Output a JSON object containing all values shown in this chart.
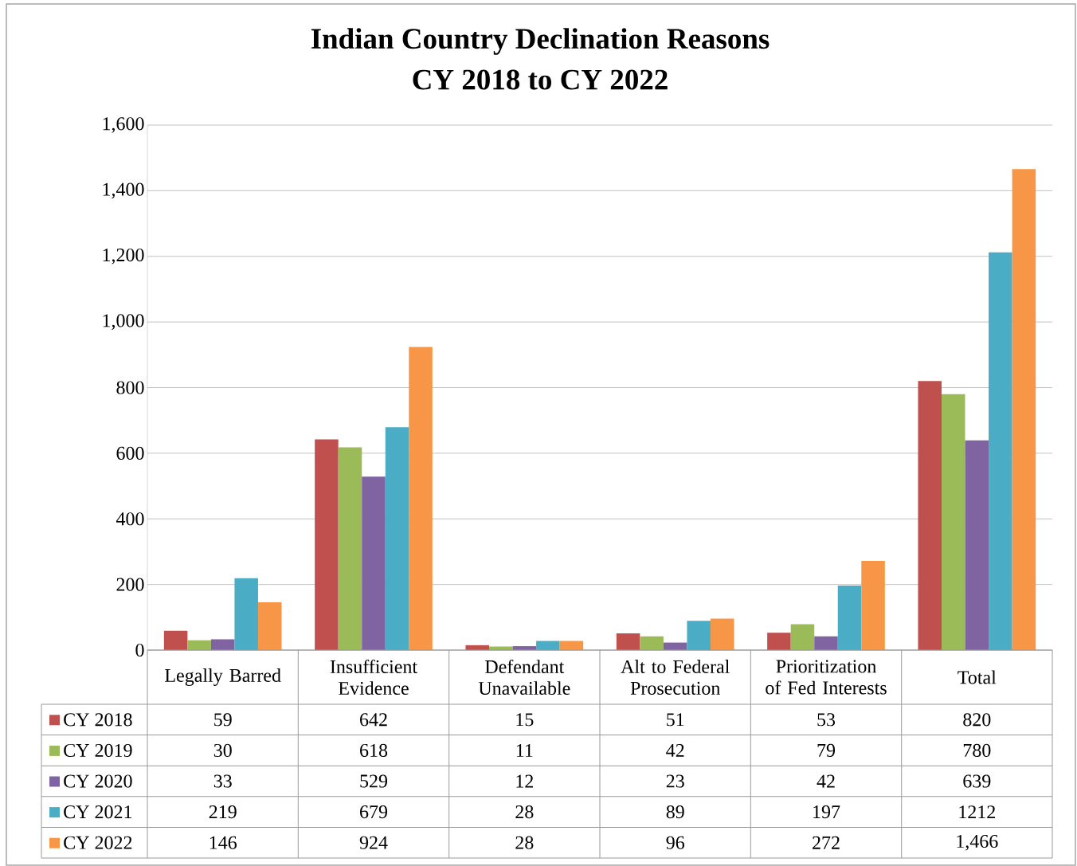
{
  "chart_data": {
    "type": "bar",
    "title": "Indian Country Declination Reasons",
    "subtitle": "CY 2018 to CY 2022",
    "categories": [
      "Legally Barred",
      "Insufficient Evidence",
      "Defendant Unavailable",
      "Alt to Federal Prosecution",
      "Prioritization of Fed Interests",
      "Total"
    ],
    "series": [
      {
        "name": "CY 2018",
        "color": "#c0504d",
        "values": [
          59,
          642,
          15,
          51,
          53,
          820
        ],
        "value_labels": [
          "59",
          "642",
          "15",
          "51",
          "53",
          "820"
        ]
      },
      {
        "name": "CY 2019",
        "color": "#9bbb59",
        "values": [
          30,
          618,
          11,
          42,
          79,
          780
        ],
        "value_labels": [
          "30",
          "618",
          "11",
          "42",
          "79",
          "780"
        ]
      },
      {
        "name": "CY 2020",
        "color": "#8064a2",
        "values": [
          33,
          529,
          12,
          23,
          42,
          639
        ],
        "value_labels": [
          "33",
          "529",
          "12",
          "23",
          "42",
          "639"
        ]
      },
      {
        "name": "CY 2021",
        "color": "#4bacc6",
        "values": [
          219,
          679,
          28,
          89,
          197,
          1212
        ],
        "value_labels": [
          "219",
          "679",
          "28",
          "89",
          "197",
          "1212"
        ]
      },
      {
        "name": "CY 2022",
        "color": "#f79646",
        "values": [
          146,
          924,
          28,
          96,
          272,
          1466
        ],
        "value_labels": [
          "146",
          "924",
          "28",
          "96",
          "272",
          "1,466"
        ]
      }
    ],
    "ylim": [
      0,
      1600
    ],
    "yticks": [
      0,
      200,
      400,
      600,
      800,
      {
        "value": 1000,
        "label": "1,000"
      },
      {
        "value": 1200,
        "label": "1,200"
      },
      {
        "value": 1400,
        "label": "1,400"
      },
      {
        "value": 1600,
        "label": "1,600"
      }
    ],
    "grid": "y",
    "legend": "bottom"
  }
}
